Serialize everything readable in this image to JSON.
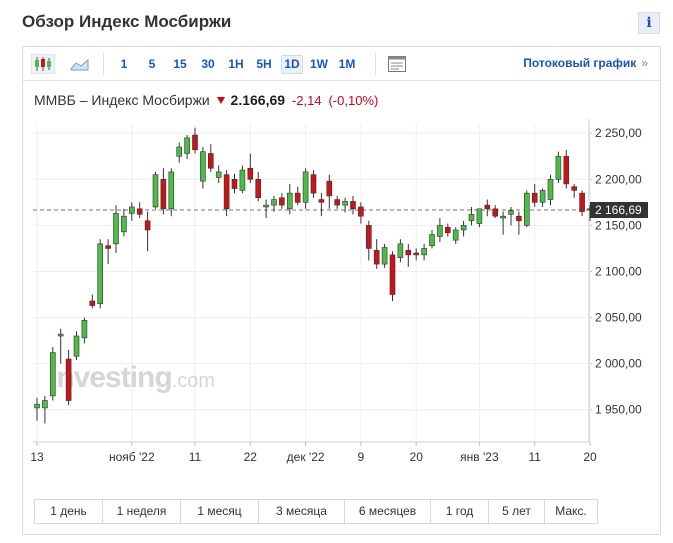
{
  "page": {
    "title": "Обзор Индекс Мосбиржи",
    "info_label": "i"
  },
  "toolbar": {
    "timeframes": [
      {
        "label": "1",
        "active": false
      },
      {
        "label": "5",
        "active": false
      },
      {
        "label": "15",
        "active": false
      },
      {
        "label": "30",
        "active": false
      },
      {
        "label": "1H",
        "active": false
      },
      {
        "label": "5H",
        "active": false
      },
      {
        "label": "1D",
        "active": true
      },
      {
        "label": "1W",
        "active": false
      },
      {
        "label": "1M",
        "active": false
      }
    ],
    "stream_link": "Потоковый график",
    "stream_arrow": "»"
  },
  "quote": {
    "name": "ММВБ – Индекс Мосбиржи",
    "price": "2.166,69",
    "change": "-2,14",
    "change_pct": "(-0,10%)",
    "direction": "down"
  },
  "watermark": {
    "brand": "Investing",
    "suffix": ".com"
  },
  "periods": [
    "1 день",
    "1 неделя",
    "1 месяц",
    "3 месяца",
    "6 месяцев",
    "1 год",
    "5 лет",
    "Макс."
  ],
  "colors": {
    "up": "#4cbb47",
    "down": "#c9141a",
    "link": "#1a56b8",
    "grid": "#eeeeee"
  },
  "chart_data": {
    "type": "candlestick",
    "ylim": [
      1915,
      2260
    ],
    "y_ticks": [
      1950,
      2000,
      2050,
      2100,
      2150,
      2200,
      2250
    ],
    "y_tick_labels": [
      "1 950,00",
      "2 000,00",
      "2 050,00",
      "2 100,00",
      "2 150,00",
      "2 200,00",
      "2 250,00"
    ],
    "x_tick_labels": [
      {
        "label": "13",
        "index": 0
      },
      {
        "label": "нояб '22",
        "index": 12
      },
      {
        "label": "11",
        "index": 20
      },
      {
        "label": "22",
        "index": 27
      },
      {
        "label": "дек '22",
        "index": 34
      },
      {
        "label": "9",
        "index": 41
      },
      {
        "label": "20",
        "index": 48
      },
      {
        "label": "янв '23",
        "index": 56
      },
      {
        "label": "11",
        "index": 63
      },
      {
        "label": "20",
        "index": 70
      }
    ],
    "last_price": 2166.69,
    "last_price_label": "2 166,69",
    "candles": [
      {
        "o": 1952,
        "h": 1963,
        "l": 1938,
        "c": 1956
      },
      {
        "o": 1952,
        "h": 1965,
        "l": 1935,
        "c": 1960
      },
      {
        "o": 1965,
        "h": 2018,
        "l": 1960,
        "c": 2012
      },
      {
        "o": 2030,
        "h": 2038,
        "l": 2000,
        "c": 2032
      },
      {
        "o": 2005,
        "h": 2015,
        "l": 1955,
        "c": 1960
      },
      {
        "o": 2008,
        "h": 2035,
        "l": 2004,
        "c": 2030
      },
      {
        "o": 2028,
        "h": 2050,
        "l": 2022,
        "c": 2047
      },
      {
        "o": 2068,
        "h": 2075,
        "l": 2060,
        "c": 2063
      },
      {
        "o": 2065,
        "h": 2135,
        "l": 2060,
        "c": 2130
      },
      {
        "o": 2128,
        "h": 2135,
        "l": 2108,
        "c": 2125
      },
      {
        "o": 2130,
        "h": 2172,
        "l": 2120,
        "c": 2163
      },
      {
        "o": 2143,
        "h": 2168,
        "l": 2138,
        "c": 2160
      },
      {
        "o": 2163,
        "h": 2175,
        "l": 2155,
        "c": 2170
      },
      {
        "o": 2168,
        "h": 2175,
        "l": 2158,
        "c": 2162
      },
      {
        "o": 2155,
        "h": 2165,
        "l": 2122,
        "c": 2145
      },
      {
        "o": 2170,
        "h": 2208,
        "l": 2168,
        "c": 2205
      },
      {
        "o": 2200,
        "h": 2212,
        "l": 2162,
        "c": 2168
      },
      {
        "o": 2168,
        "h": 2212,
        "l": 2160,
        "c": 2208
      },
      {
        "o": 2225,
        "h": 2240,
        "l": 2218,
        "c": 2235
      },
      {
        "o": 2228,
        "h": 2248,
        "l": 2222,
        "c": 2245
      },
      {
        "o": 2248,
        "h": 2256,
        "l": 2228,
        "c": 2232
      },
      {
        "o": 2198,
        "h": 2235,
        "l": 2190,
        "c": 2230
      },
      {
        "o": 2228,
        "h": 2238,
        "l": 2208,
        "c": 2212
      },
      {
        "o": 2202,
        "h": 2215,
        "l": 2196,
        "c": 2208
      },
      {
        "o": 2205,
        "h": 2210,
        "l": 2160,
        "c": 2168
      },
      {
        "o": 2200,
        "h": 2206,
        "l": 2185,
        "c": 2190
      },
      {
        "o": 2188,
        "h": 2215,
        "l": 2185,
        "c": 2210
      },
      {
        "o": 2212,
        "h": 2228,
        "l": 2196,
        "c": 2200
      },
      {
        "o": 2200,
        "h": 2208,
        "l": 2176,
        "c": 2180
      },
      {
        "o": 2170,
        "h": 2178,
        "l": 2158,
        "c": 2172
      },
      {
        "o": 2172,
        "h": 2182,
        "l": 2165,
        "c": 2178
      },
      {
        "o": 2180,
        "h": 2185,
        "l": 2168,
        "c": 2172
      },
      {
        "o": 2168,
        "h": 2195,
        "l": 2162,
        "c": 2185
      },
      {
        "o": 2185,
        "h": 2192,
        "l": 2172,
        "c": 2175
      },
      {
        "o": 2175,
        "h": 2212,
        "l": 2168,
        "c": 2208
      },
      {
        "o": 2205,
        "h": 2210,
        "l": 2180,
        "c": 2185
      },
      {
        "o": 2178,
        "h": 2185,
        "l": 2160,
        "c": 2175
      },
      {
        "o": 2198,
        "h": 2205,
        "l": 2168,
        "c": 2182
      },
      {
        "o": 2178,
        "h": 2182,
        "l": 2168,
        "c": 2172
      },
      {
        "o": 2172,
        "h": 2180,
        "l": 2164,
        "c": 2176
      },
      {
        "o": 2176,
        "h": 2182,
        "l": 2162,
        "c": 2168
      },
      {
        "o": 2170,
        "h": 2175,
        "l": 2152,
        "c": 2160
      },
      {
        "o": 2150,
        "h": 2155,
        "l": 2112,
        "c": 2125
      },
      {
        "o": 2123,
        "h": 2135,
        "l": 2103,
        "c": 2108
      },
      {
        "o": 2108,
        "h": 2130,
        "l": 2104,
        "c": 2126
      },
      {
        "o": 2118,
        "h": 2122,
        "l": 2068,
        "c": 2075
      },
      {
        "o": 2115,
        "h": 2135,
        "l": 2110,
        "c": 2130
      },
      {
        "o": 2123,
        "h": 2130,
        "l": 2105,
        "c": 2118
      },
      {
        "o": 2120,
        "h": 2125,
        "l": 2112,
        "c": 2118
      },
      {
        "o": 2118,
        "h": 2130,
        "l": 2112,
        "c": 2125
      },
      {
        "o": 2128,
        "h": 2145,
        "l": 2125,
        "c": 2140
      },
      {
        "o": 2138,
        "h": 2158,
        "l": 2132,
        "c": 2150
      },
      {
        "o": 2148,
        "h": 2152,
        "l": 2138,
        "c": 2142
      },
      {
        "o": 2134,
        "h": 2148,
        "l": 2130,
        "c": 2145
      },
      {
        "o": 2145,
        "h": 2155,
        "l": 2138,
        "c": 2150
      },
      {
        "o": 2155,
        "h": 2170,
        "l": 2150,
        "c": 2162
      },
      {
        "o": 2152,
        "h": 2168,
        "l": 2148,
        "c": 2168
      },
      {
        "o": 2172,
        "h": 2178,
        "l": 2160,
        "c": 2168
      },
      {
        "o": 2168,
        "h": 2172,
        "l": 2158,
        "c": 2160
      },
      {
        "o": 2158,
        "h": 2165,
        "l": 2140,
        "c": 2160
      },
      {
        "o": 2162,
        "h": 2170,
        "l": 2150,
        "c": 2166
      },
      {
        "o": 2160,
        "h": 2165,
        "l": 2140,
        "c": 2155
      },
      {
        "o": 2150,
        "h": 2188,
        "l": 2148,
        "c": 2185
      },
      {
        "o": 2185,
        "h": 2195,
        "l": 2170,
        "c": 2175
      },
      {
        "o": 2175,
        "h": 2190,
        "l": 2170,
        "c": 2188
      },
      {
        "o": 2178,
        "h": 2205,
        "l": 2172,
        "c": 2200
      },
      {
        "o": 2200,
        "h": 2230,
        "l": 2196,
        "c": 2225
      },
      {
        "o": 2225,
        "h": 2232,
        "l": 2190,
        "c": 2195
      },
      {
        "o": 2192,
        "h": 2195,
        "l": 2180,
        "c": 2188
      },
      {
        "o": 2185,
        "h": 2188,
        "l": 2160,
        "c": 2165
      },
      {
        "o": 2168,
        "h": 2172,
        "l": 2155,
        "c": 2166.69
      }
    ]
  }
}
